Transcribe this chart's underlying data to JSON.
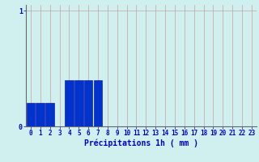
{
  "xlabel": "Précipitations 1h ( mm )",
  "bar_values": [
    0.2,
    0.2,
    0.2,
    0.0,
    0.4,
    0.4,
    0.4,
    0.4,
    0.0,
    0.0,
    0.0,
    0.0,
    0.0,
    0.0,
    0.0,
    0.0,
    0.0,
    0.0,
    0.0,
    0.0,
    0.0,
    0.0,
    0.0,
    0.0
  ],
  "bar_color": "#0033cc",
  "bar_edge_color": "#0000aa",
  "background_color": "#d0f0f0",
  "grid_color": "#c8a0a0",
  "axis_color": "#666666",
  "label_color": "#0000cc",
  "ylim": [
    0,
    1.05
  ],
  "xlim": [
    -0.5,
    23.5
  ],
  "yticks": [
    0,
    1
  ],
  "xticks": [
    0,
    1,
    2,
    3,
    4,
    5,
    6,
    7,
    8,
    9,
    10,
    11,
    12,
    13,
    14,
    15,
    16,
    17,
    18,
    19,
    20,
    21,
    22,
    23
  ],
  "xlabel_fontsize": 7,
  "tick_fontsize": 5.5,
  "bar_width": 0.9
}
